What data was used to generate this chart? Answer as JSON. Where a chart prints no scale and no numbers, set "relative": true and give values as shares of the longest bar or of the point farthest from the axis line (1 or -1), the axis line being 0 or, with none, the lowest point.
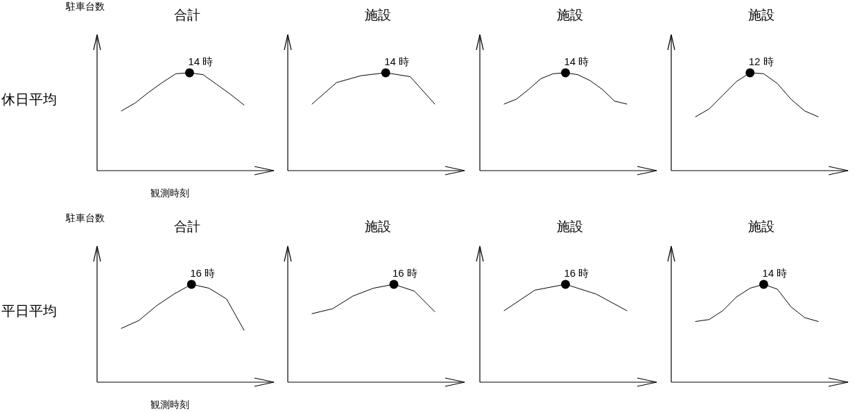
{
  "chart_data": [
    {
      "type": "line",
      "title": "合計",
      "ylabel": "駐車台数",
      "xlabel": "観測時刻",
      "annotations": [
        "休日平均",
        {
          "text": "14 時",
          "y": 1.0
        }
      ],
      "relative": true,
      "categories": [
        null,
        null,
        null,
        null,
        null,
        null,
        null,
        null,
        null,
        null
      ],
      "series": [
        {
          "color": "#000000",
          "values": [
            0.61,
            0.69,
            0.8,
            0.9,
            0.99,
            1.0,
            0.98,
            0.88,
            0.78,
            0.67
          ]
        }
      ]
    },
    {
      "type": "line",
      "title": "施設",
      "annotations": [
        {
          "text": "14 時",
          "y": 1.0
        }
      ],
      "relative": true,
      "categories": [
        null,
        null,
        null,
        null,
        null,
        null
      ],
      "series": [
        {
          "color": "#000000",
          "values": [
            0.68,
            0.9,
            0.97,
            1.0,
            0.96,
            0.68
          ]
        }
      ]
    },
    {
      "type": "line",
      "title": "施設",
      "annotations": [
        {
          "text": "14 時",
          "y": 1.0
        }
      ],
      "relative": true,
      "categories": [
        null,
        null,
        null,
        null,
        null,
        null,
        null,
        null,
        null,
        null,
        null
      ],
      "series": [
        {
          "color": "#000000",
          "values": [
            0.68,
            0.73,
            0.83,
            0.94,
            0.99,
            1.0,
            0.98,
            0.92,
            0.83,
            0.71,
            0.68
          ]
        }
      ]
    },
    {
      "type": "line",
      "title": "施設",
      "annotations": [
        {
          "text": "12 時",
          "y": 1.0
        }
      ],
      "relative": true,
      "categories": [
        null,
        null,
        null,
        null,
        null,
        null,
        null,
        null,
        null,
        null
      ],
      "series": [
        {
          "color": "#000000",
          "values": [
            0.55,
            0.63,
            0.77,
            0.91,
            1.0,
            0.99,
            0.89,
            0.73,
            0.61,
            0.55
          ]
        }
      ]
    },
    {
      "type": "line",
      "title": "合計",
      "ylabel": "駐車台数",
      "xlabel": "観測時刻",
      "annotations": [
        "平日平均",
        {
          "text": "16 時",
          "y": 1.0
        }
      ],
      "relative": true,
      "categories": [
        null,
        null,
        null,
        null,
        null,
        null,
        null,
        null
      ],
      "series": [
        {
          "color": "#000000",
          "values": [
            0.55,
            0.63,
            0.78,
            0.9,
            1.0,
            0.96,
            0.85,
            0.53
          ]
        }
      ]
    },
    {
      "type": "line",
      "title": "施設",
      "annotations": [
        {
          "text": "16 時",
          "y": 1.0
        }
      ],
      "relative": true,
      "categories": [
        null,
        null,
        null,
        null,
        null,
        null,
        null
      ],
      "series": [
        {
          "color": "#000000",
          "values": [
            0.7,
            0.75,
            0.88,
            0.96,
            1.0,
            0.93,
            0.72
          ]
        }
      ]
    },
    {
      "type": "line",
      "title": "施設",
      "annotations": [
        {
          "text": "16 時",
          "y": 1.0
        }
      ],
      "relative": true,
      "categories": [
        null,
        null,
        null,
        null,
        null
      ],
      "series": [
        {
          "color": "#000000",
          "values": [
            0.73,
            0.94,
            1.0,
            0.9,
            0.73
          ]
        }
      ]
    },
    {
      "type": "line",
      "title": "施設",
      "annotations": [
        {
          "text": "14 時",
          "y": 1.0
        }
      ],
      "relative": true,
      "categories": [
        null,
        null,
        null,
        null,
        null,
        null,
        null,
        null,
        null,
        null
      ],
      "series": [
        {
          "color": "#000000",
          "values": [
            0.62,
            0.64,
            0.73,
            0.87,
            0.96,
            1.0,
            0.95,
            0.77,
            0.66,
            0.62
          ]
        }
      ]
    }
  ]
}
